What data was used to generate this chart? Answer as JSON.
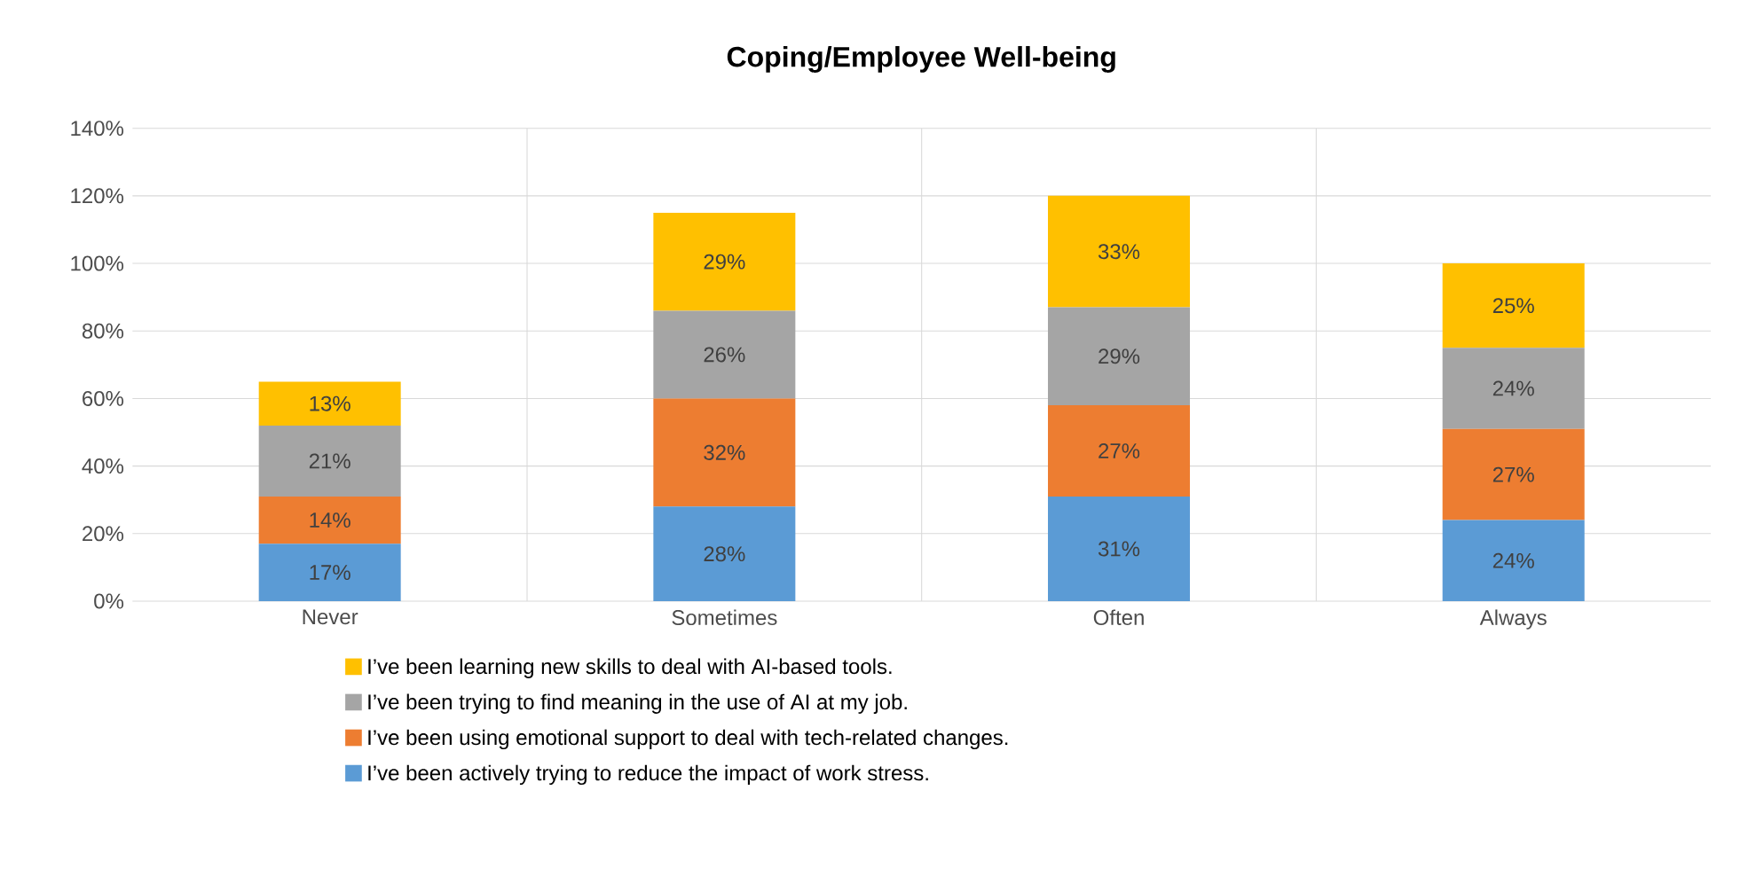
{
  "chart_data": {
    "type": "bar",
    "stacked": true,
    "title": "Coping/Employee Well-being",
    "categories": [
      "Never",
      "Sometimes",
      "Often",
      "Always"
    ],
    "series": [
      {
        "name": "I’ve been actively trying to reduce the impact of work stress.",
        "color": "#5b9bd5",
        "values": [
          17,
          28,
          31,
          24
        ],
        "value_labels": [
          "17%",
          "28%",
          "31%",
          "24%"
        ]
      },
      {
        "name": "I’ve been using emotional support to deal with tech-related changes.",
        "color": "#ed7d31",
        "values": [
          14,
          32,
          27,
          27
        ],
        "value_labels": [
          "14%",
          "32%",
          "27%",
          "27%"
        ]
      },
      {
        "name": "I’ve been trying to find meaning in the use of AI at my job.",
        "color": "#a5a5a5",
        "values": [
          21,
          26,
          29,
          24
        ],
        "value_labels": [
          "21%",
          "26%",
          "29%",
          "24%"
        ]
      },
      {
        "name": "I’ve been learning new skills to deal with AI-based tools.",
        "color": "#ffc000",
        "values": [
          13,
          29,
          33,
          25
        ],
        "value_labels": [
          "13%",
          "29%",
          "33%",
          "25%"
        ]
      }
    ],
    "ylim": [
      0,
      140
    ],
    "yticks": [
      {
        "value": 0,
        "label": "0%"
      },
      {
        "value": 20,
        "label": "20%"
      },
      {
        "value": 40,
        "label": "40%"
      },
      {
        "value": 60,
        "label": "60%"
      },
      {
        "value": 80,
        "label": "80%"
      },
      {
        "value": 100,
        "label": "100%"
      },
      {
        "value": 120,
        "label": "120%"
      },
      {
        "value": 140,
        "label": "140%"
      }
    ],
    "grid": true,
    "legend": "bottom"
  }
}
